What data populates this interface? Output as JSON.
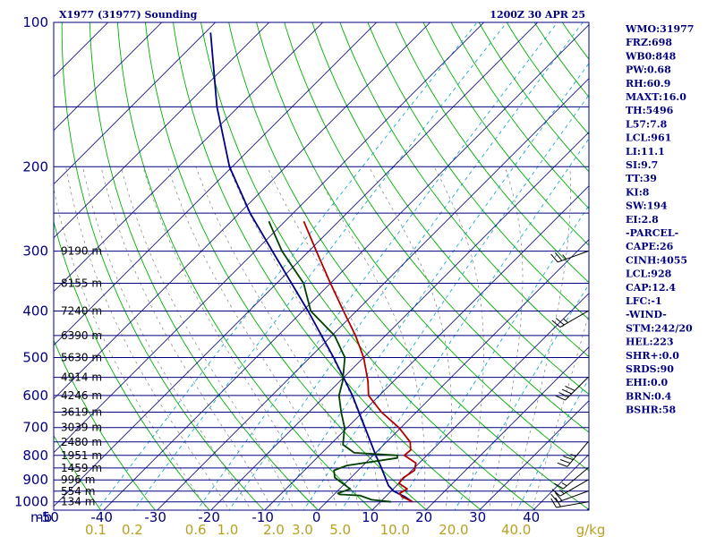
{
  "header": {
    "station": "X1977 (31977) Sounding",
    "time": "1200Z 30 APR 25"
  },
  "indices": [
    "WMO:31977",
    "FRZ:698",
    "WB0:848",
    "PW:0.68",
    "RH:60.9",
    "MAXT:16.0",
    "TH:5496",
    "L57:7.8",
    "LCL:961",
    "LI:11.1",
    "SI:9.7",
    "TT:39",
    "KI:8",
    "SW:194",
    "EI:2.8",
    "-PARCEL-",
    "CAPE:26",
    "CINH:4055",
    "LCL:928",
    "CAP:12.4",
    "LFC:-1",
    "-WIND-",
    "STM:242/20",
    "HEL:223",
    "SHR+:0.0",
    "SRDS:90",
    "EHI:0.0",
    "BRN:0.4",
    "BSHR:58"
  ],
  "colors": {
    "frame": "#000080",
    "isobar": "#000080",
    "isotherm": "#000080",
    "dry_adiabat": "#00b000",
    "moist_adiabat": "#808080",
    "mixing_ratio": "#00a0c8",
    "temperature": "#b00000",
    "dewpoint": "#004000",
    "parcel": "#000080",
    "wind_barb": "#000000",
    "mixing_label": "#b8a020"
  },
  "chart_data": {
    "type": "skew-t log-p",
    "pressure_axis_label": "mb",
    "pressure_ticks": [
      100,
      200,
      300,
      400,
      500,
      600,
      700,
      800,
      900,
      1000
    ],
    "temperature_ticks": [
      -50,
      -40,
      -30,
      -20,
      -10,
      0,
      10,
      20,
      30,
      40
    ],
    "mixing_ratio_ticks": [
      "0.1",
      "0.2",
      "0.6",
      "1.0",
      "2.0",
      "3.0",
      "5.0",
      "10.0",
      "20.0",
      "40.0"
    ],
    "mixing_ratio_unit": "g/kg",
    "ylim_mb": [
      1050,
      100
    ],
    "xlim_c_at_bottom": [
      -50,
      50
    ],
    "height_labels": [
      {
        "p": 1000,
        "label": "134 m"
      },
      {
        "p": 950,
        "label": "554 m"
      },
      {
        "p": 900,
        "label": "996 m"
      },
      {
        "p": 850,
        "label": "1459 m"
      },
      {
        "p": 800,
        "label": "1951 m"
      },
      {
        "p": 750,
        "label": "2480 m"
      },
      {
        "p": 700,
        "label": "3039 m"
      },
      {
        "p": 650,
        "label": "3619 m"
      },
      {
        "p": 600,
        "label": "4246 m"
      },
      {
        "p": 550,
        "label": "4914 m"
      },
      {
        "p": 500,
        "label": "5630 m"
      },
      {
        "p": 450,
        "label": "6390 m"
      },
      {
        "p": 400,
        "label": "7240 m"
      },
      {
        "p": 350,
        "label": "8155 m"
      },
      {
        "p": 300,
        "label": "9190 m"
      }
    ],
    "temperature": [
      {
        "p": 1000,
        "t": 16.0
      },
      {
        "p": 975,
        "t": 13.0
      },
      {
        "p": 960,
        "t": 12.0
      },
      {
        "p": 940,
        "t": 12.6
      },
      {
        "p": 915,
        "t": 10.0
      },
      {
        "p": 890,
        "t": 9.8
      },
      {
        "p": 860,
        "t": 10.5
      },
      {
        "p": 830,
        "t": 9.4
      },
      {
        "p": 800,
        "t": 5.8
      },
      {
        "p": 780,
        "t": 6.0
      },
      {
        "p": 750,
        "t": 4.4
      },
      {
        "p": 700,
        "t": -0.4
      },
      {
        "p": 650,
        "t": -6.5
      },
      {
        "p": 600,
        "t": -12.0
      },
      {
        "p": 560,
        "t": -14.8
      },
      {
        "p": 500,
        "t": -20.0
      },
      {
        "p": 450,
        "t": -25.6
      },
      {
        "p": 400,
        "t": -32.4
      },
      {
        "p": 350,
        "t": -40.0
      },
      {
        "p": 300,
        "t": -48.6
      },
      {
        "p": 260,
        "t": -56.5
      }
    ],
    "dewpoint": [
      {
        "p": 1000,
        "t": 12.0
      },
      {
        "p": 990,
        "t": 8.0
      },
      {
        "p": 970,
        "t": 5.0
      },
      {
        "p": 965,
        "t": 1.0
      },
      {
        "p": 960,
        "t": 0.5
      },
      {
        "p": 940,
        "t": 2.0
      },
      {
        "p": 920,
        "t": 0.0
      },
      {
        "p": 890,
        "t": -3.0
      },
      {
        "p": 860,
        "t": -4.5
      },
      {
        "p": 840,
        "t": -3.0
      },
      {
        "p": 810,
        "t": 5.0
      },
      {
        "p": 800,
        "t": 4.5
      },
      {
        "p": 790,
        "t": -4.0
      },
      {
        "p": 760,
        "t": -7.6
      },
      {
        "p": 700,
        "t": -10.5
      },
      {
        "p": 650,
        "t": -14.0
      },
      {
        "p": 600,
        "t": -17.5
      },
      {
        "p": 560,
        "t": -19.5
      },
      {
        "p": 500,
        "t": -23.5
      },
      {
        "p": 450,
        "t": -29.5
      },
      {
        "p": 400,
        "t": -38.5
      },
      {
        "p": 350,
        "t": -45.0
      },
      {
        "p": 300,
        "t": -55.0
      },
      {
        "p": 260,
        "t": -63.0
      }
    ],
    "parcel": [
      {
        "p": 1000,
        "t": 16.0
      },
      {
        "p": 975,
        "t": 13.5
      },
      {
        "p": 950,
        "t": 10.5
      },
      {
        "p": 925,
        "t": 8.5
      },
      {
        "p": 900,
        "t": 7.0
      },
      {
        "p": 850,
        "t": 3.9
      },
      {
        "p": 800,
        "t": 0.5
      },
      {
        "p": 700,
        "t": -6.7
      },
      {
        "p": 600,
        "t": -15.0
      },
      {
        "p": 500,
        "t": -25.6
      },
      {
        "p": 400,
        "t": -39.0
      },
      {
        "p": 300,
        "t": -56.8
      },
      {
        "p": 250,
        "t": -68.0
      },
      {
        "p": 200,
        "t": -80.5
      },
      {
        "p": 150,
        "t": -94.0
      },
      {
        "p": 105,
        "t": -109.0
      }
    ],
    "winds": [
      {
        "p": 1000,
        "dir": 260,
        "kt": 20
      },
      {
        "p": 950,
        "dir": 250,
        "kt": 20
      },
      {
        "p": 900,
        "dir": 240,
        "kt": 15
      },
      {
        "p": 850,
        "dir": 230,
        "kt": 15
      },
      {
        "p": 750,
        "dir": 220,
        "kt": 35
      },
      {
        "p": 550,
        "dir": 225,
        "kt": 40
      },
      {
        "p": 400,
        "dir": 240,
        "kt": 25
      },
      {
        "p": 300,
        "dir": 250,
        "kt": 25
      }
    ]
  }
}
